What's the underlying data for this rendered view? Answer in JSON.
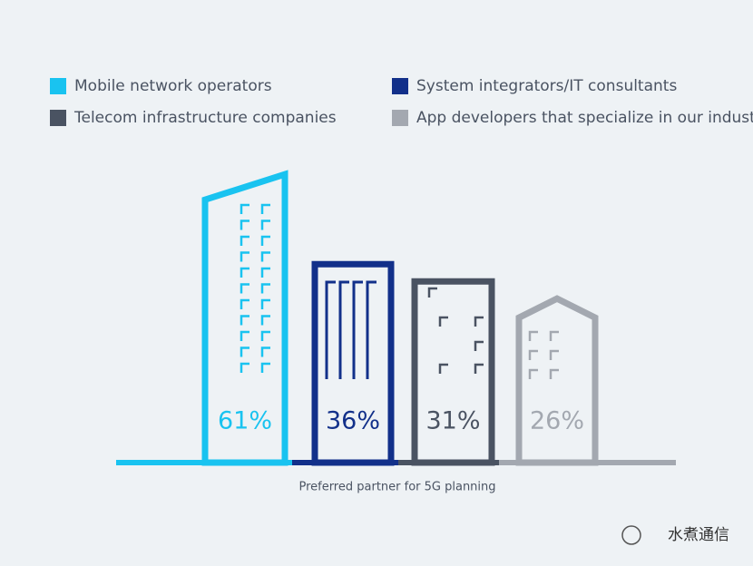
{
  "chart_data": {
    "type": "building",
    "categories": [
      "Mobile network operators",
      "System integrators/IT consultants",
      "Telecom infrastructure companies",
      "App developers that specialize in our industry"
    ],
    "values": [
      61,
      36,
      31,
      26
    ],
    "value_labels": [
      "61%",
      "36%",
      "31%",
      "26%"
    ],
    "colors": [
      "#19c3f0",
      "#12308a",
      "#4a5362",
      "#a3a8b0"
    ],
    "x_label": "Preferred partner for 5G planning",
    "watermark": "水煮通信"
  }
}
